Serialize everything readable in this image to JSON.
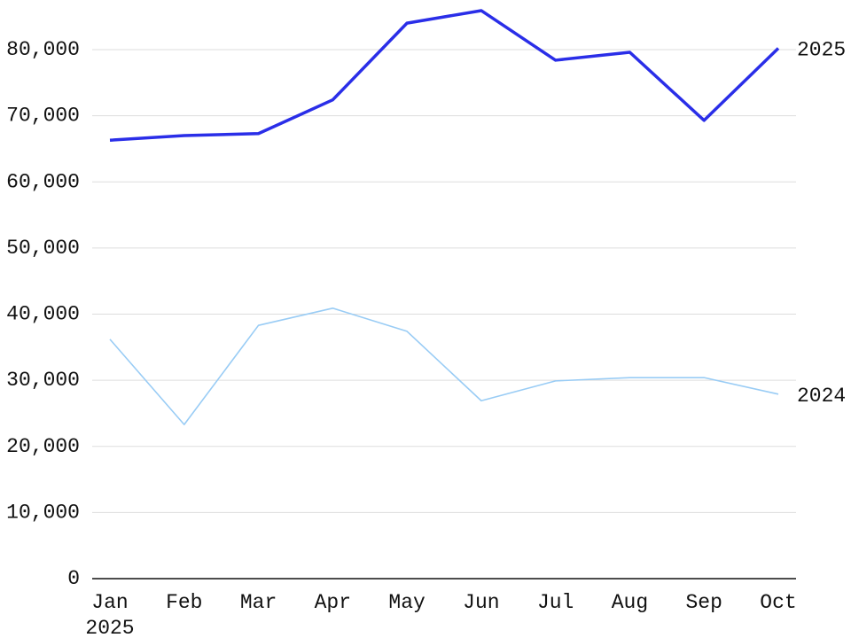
{
  "chart_data": {
    "type": "line",
    "categories": [
      "Jan",
      "Feb",
      "Mar",
      "Apr",
      "May",
      "Jun",
      "Jul",
      "Aug",
      "Sep",
      "Oct"
    ],
    "x_sublabel": "2025",
    "series": [
      {
        "name": "2025",
        "color": "#2a2ee8",
        "values": [
          66300,
          67000,
          67300,
          72400,
          84000,
          85900,
          78400,
          79600,
          69300,
          80200
        ]
      },
      {
        "name": "2024",
        "color": "#99ccf5",
        "values": [
          36200,
          23300,
          38300,
          40900,
          37400,
          26900,
          29900,
          30400,
          30400,
          27900
        ]
      }
    ],
    "ylim": [
      0,
      80000
    ],
    "yticks": [
      0,
      {
        "value": 10000,
        "label": "10,000"
      },
      {
        "value": 20000,
        "label": "20,000"
      },
      {
        "value": 30000,
        "label": "30,000"
      },
      {
        "value": 40000,
        "label": "40,000"
      },
      {
        "value": 50000,
        "label": "50,000"
      },
      {
        "value": 60000,
        "label": "60,000"
      },
      {
        "value": 70000,
        "label": "70,000"
      },
      {
        "value": 80000,
        "label": "80,000"
      }
    ],
    "grid": true
  }
}
